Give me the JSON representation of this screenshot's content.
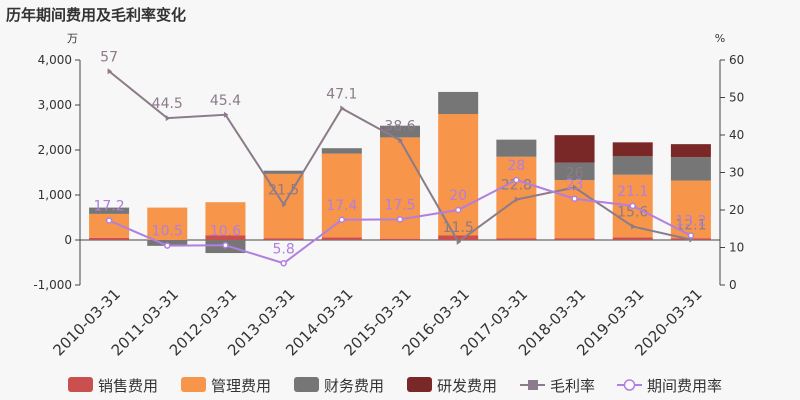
{
  "chart_data": {
    "type": "bar",
    "title": "历年期间费用及毛利率变化",
    "left_unit": "万",
    "right_unit": "%",
    "categories": [
      "2010-03-31",
      "2011-03-31",
      "2012-03-31",
      "2013-03-31",
      "2014-03-31",
      "2015-03-31",
      "2016-03-31",
      "2017-03-31",
      "2018-03-31",
      "2019-03-31",
      "2020-03-31"
    ],
    "left_axis": {
      "ylim": [
        -1000,
        4000
      ],
      "ticks": [
        "-1,000",
        "0",
        "1,000",
        "2,000",
        "3,000",
        "4,000"
      ]
    },
    "right_axis": {
      "ylim": [
        0,
        60
      ],
      "ticks": [
        "0",
        "10",
        "20",
        "30",
        "40",
        "50",
        "60"
      ]
    },
    "bar_series": [
      {
        "name": "销售费用",
        "color": "#c9504f",
        "values": [
          50,
          0,
          100,
          40,
          60,
          30,
          100,
          40,
          40,
          60,
          40
        ]
      },
      {
        "name": "管理费用",
        "color": "#f7954a",
        "values": [
          530,
          720,
          740,
          1430,
          1860,
          2250,
          2700,
          1810,
          1290,
          1390,
          1280
        ]
      },
      {
        "name": "财务费用",
        "color": "#767676",
        "values": [
          140,
          -130,
          -290,
          70,
          120,
          260,
          490,
          380,
          390,
          410,
          520
        ]
      },
      {
        "name": "研发费用",
        "color": "#7a2727",
        "values": [
          0,
          0,
          0,
          0,
          0,
          0,
          0,
          0,
          610,
          310,
          290
        ]
      }
    ],
    "line_series": [
      {
        "name": "毛利率",
        "color": "#8c7b8a",
        "values": [
          57,
          44.5,
          45.4,
          21.5,
          47.1,
          38.6,
          11.5,
          22.8,
          26,
          15.6,
          12.1
        ],
        "labels": [
          "57",
          "44.5",
          "45.4",
          "21.5",
          "47.1",
          "38.6",
          "11.5",
          "22.8",
          "26",
          "15.6",
          "12.1"
        ]
      },
      {
        "name": "期间费用率",
        "color": "#b07fe0",
        "values": [
          17.2,
          10.5,
          10.6,
          5.8,
          17.4,
          17.5,
          20,
          28,
          23,
          21.1,
          13.2
        ],
        "labels": [
          "17.2",
          "10.5",
          "10.6",
          "5.8",
          "17.4",
          "17.5",
          "20",
          "28",
          "23",
          "21.1",
          "13.2"
        ]
      }
    ],
    "legend": [
      "销售费用",
      "管理费用",
      "财务费用",
      "研发费用",
      "毛利率",
      "期间费用率"
    ],
    "legend_position": "bottom",
    "grid": false
  }
}
